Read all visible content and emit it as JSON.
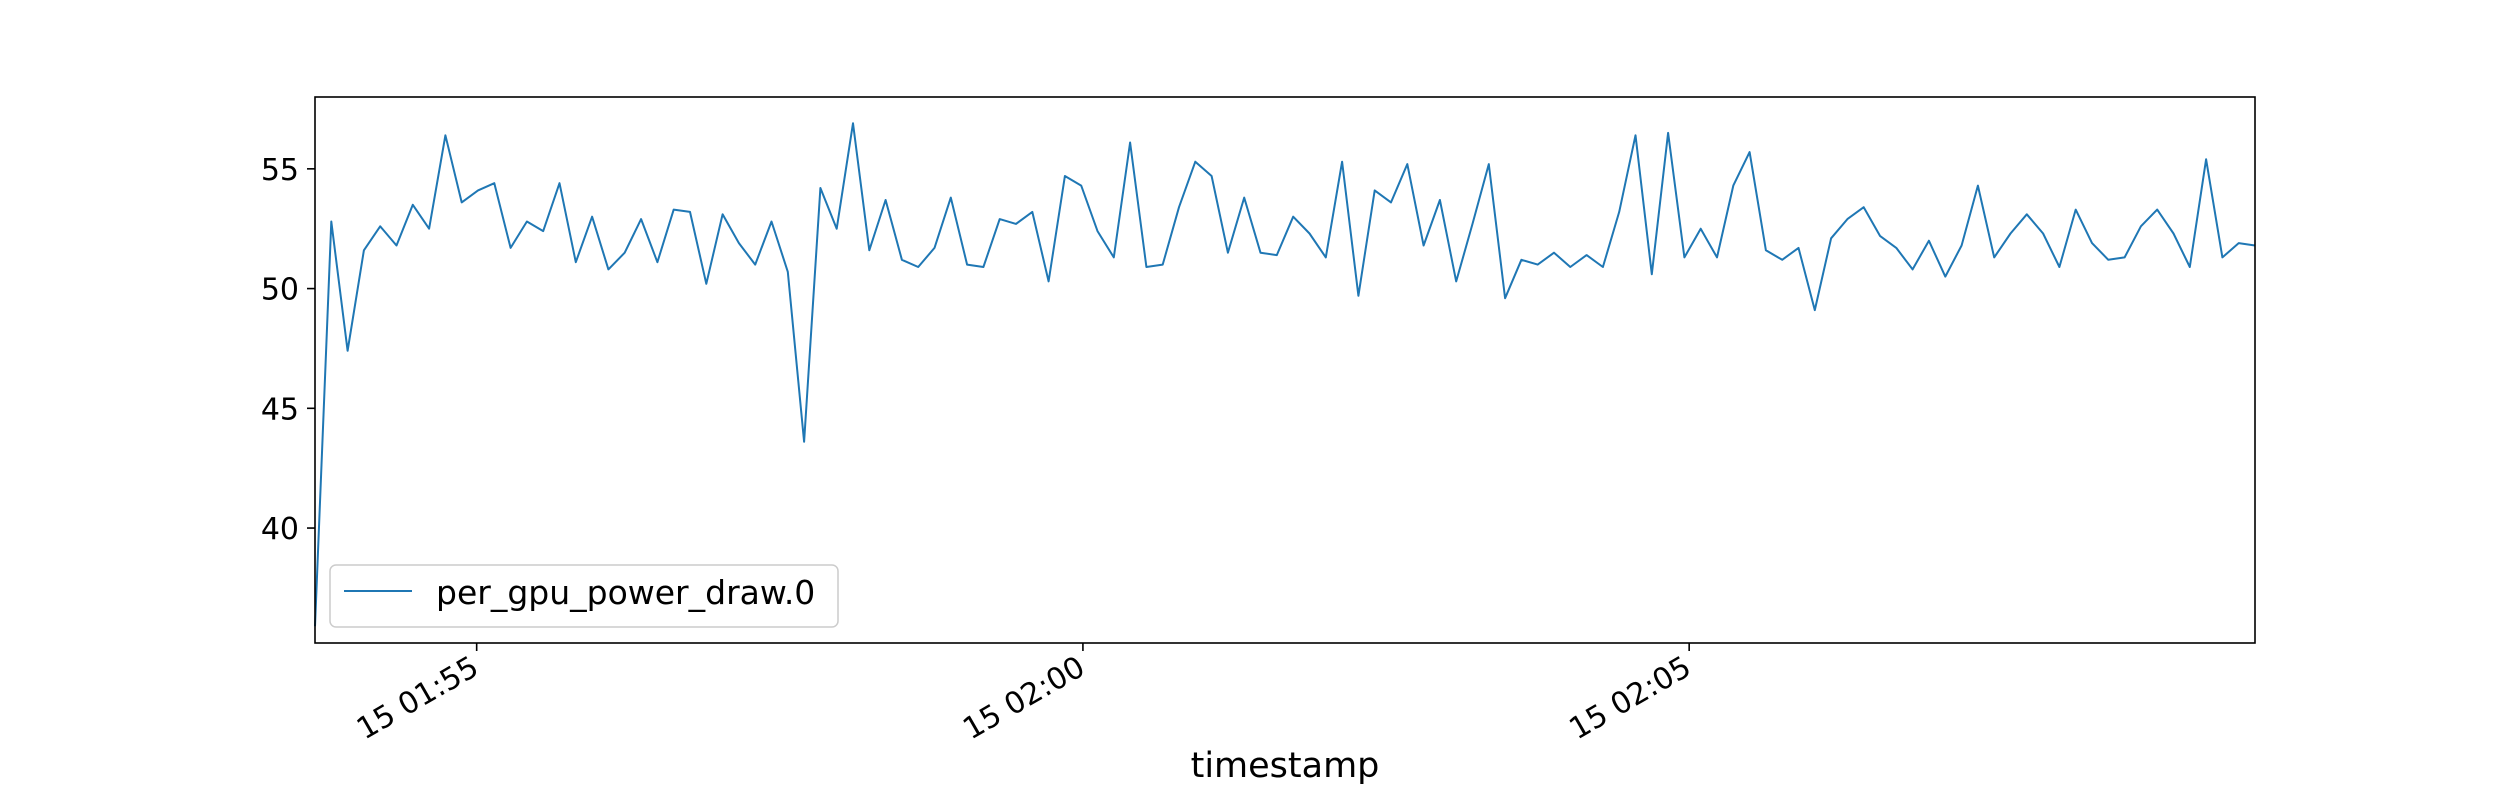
{
  "chart_data": {
    "type": "line",
    "title": "",
    "xlabel": "timestamp",
    "ylabel": "",
    "x_start": "15 01:53:40",
    "x_end": "15 02:09:40",
    "x_tick_labels": [
      "15 01:55",
      "15 02:00",
      "15 02:05"
    ],
    "x_tick_times": [
      "15 01:55:00",
      "15 02:00:00",
      "15 02:05:00"
    ],
    "y_ticks": [
      40,
      45,
      50,
      55
    ],
    "ylim": [
      35.2,
      58.0
    ],
    "grid": false,
    "legend_location": "lower-left",
    "series": [
      {
        "name": "per_gpu_power_draw.0",
        "color": "#1f77b4",
        "values": [
          35.9,
          52.8,
          47.4,
          51.6,
          52.6,
          51.8,
          53.5,
          52.5,
          56.4,
          53.6,
          54.1,
          54.4,
          51.7,
          52.8,
          52.4,
          54.4,
          51.1,
          53.0,
          50.8,
          51.5,
          52.9,
          51.1,
          53.3,
          53.2,
          50.2,
          53.1,
          51.9,
          51.0,
          52.8,
          50.7,
          43.6,
          54.2,
          52.5,
          56.9,
          51.6,
          53.7,
          51.2,
          50.9,
          51.7,
          53.8,
          51.0,
          50.9,
          52.9,
          52.7,
          53.2,
          50.3,
          54.7,
          54.3,
          52.4,
          51.3,
          56.1,
          50.9,
          51.0,
          53.4,
          55.3,
          54.7,
          51.5,
          53.8,
          51.5,
          51.4,
          53.0,
          52.3,
          51.3,
          55.3,
          49.7,
          54.1,
          53.6,
          55.2,
          51.8,
          53.7,
          50.3,
          52.7,
          55.2,
          49.6,
          51.2,
          51.0,
          51.5,
          50.9,
          51.4,
          50.9,
          53.2,
          56.4,
          50.6,
          56.5,
          51.3,
          52.5,
          51.3,
          54.3,
          55.7,
          51.6,
          51.2,
          51.7,
          49.1,
          52.1,
          52.9,
          53.4,
          52.2,
          51.7,
          50.8,
          52.0,
          50.5,
          51.8,
          54.3,
          51.3,
          52.3,
          53.1,
          52.3,
          50.9,
          53.3,
          51.9,
          51.2,
          51.3,
          52.6,
          53.3,
          52.3,
          50.9,
          55.4,
          51.3,
          51.9,
          51.8
        ]
      }
    ]
  }
}
